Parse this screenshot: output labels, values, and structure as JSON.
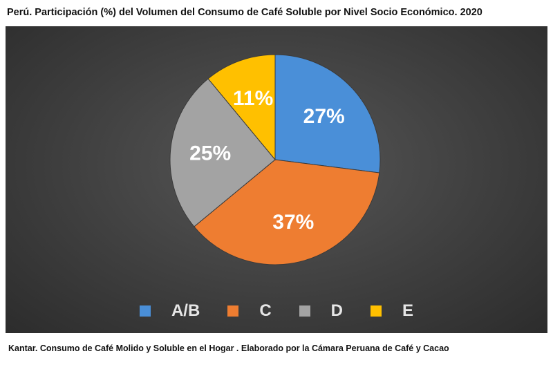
{
  "title": "Perú. Participación (%) del Volumen del Consumo de Café Soluble por Nivel Socio Económico. 2020",
  "source": "Kantar. Consumo de Café Molido y Soluble en el Hogar . Elaborado por la Cámara Peruana de Café y Cacao",
  "chart_data": {
    "type": "pie",
    "title": "Perú. Participación (%) del Volumen del Consumo de Café Soluble por Nivel Socio Económico. 2020",
    "categories": [
      "A/B",
      "C",
      "D",
      "E"
    ],
    "values": [
      27,
      37,
      25,
      11
    ],
    "labels": [
      "27%",
      "37%",
      "25%",
      "11%"
    ],
    "colors": [
      "#4a8fd8",
      "#ee7d31",
      "#a3a3a3",
      "#ffc000"
    ],
    "legend_position": "bottom",
    "start_angle": "top",
    "direction": "clockwise"
  }
}
